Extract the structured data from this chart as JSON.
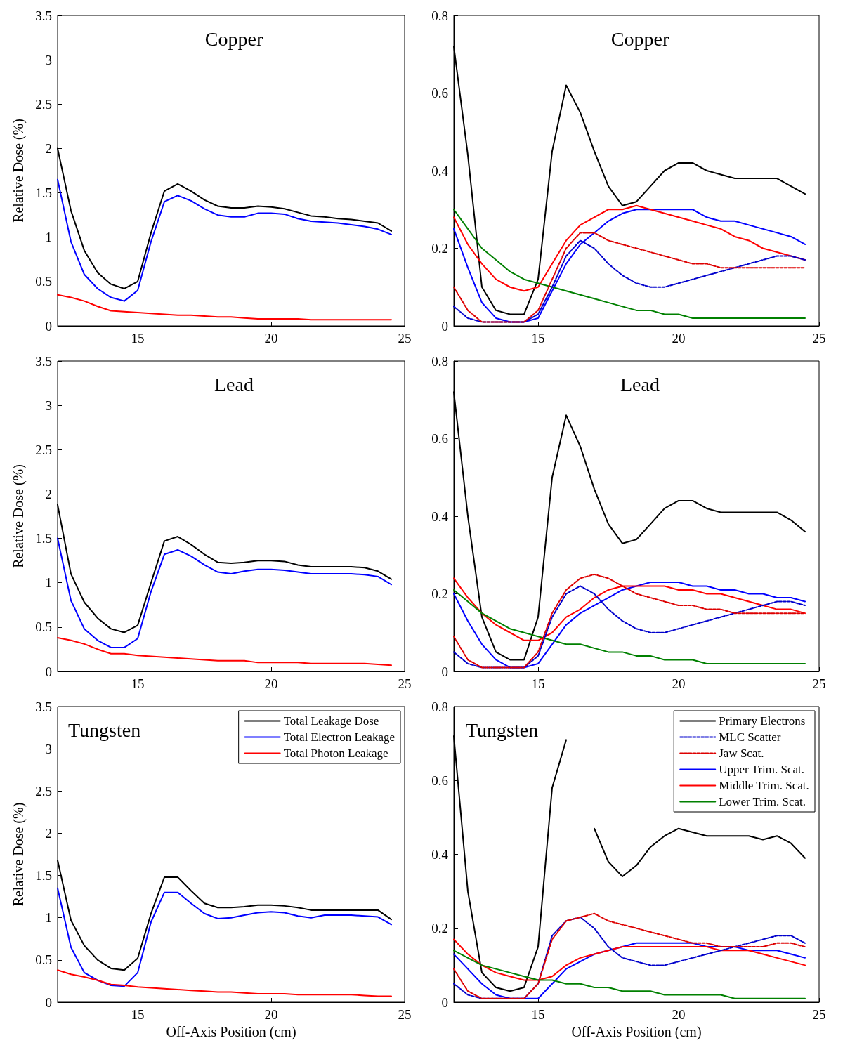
{
  "chart_data": [
    {
      "type": "line",
      "title": "Copper",
      "ylabel": "Relative Dose (%)",
      "xlim": [
        12,
        25
      ],
      "xticks": [
        15,
        20,
        25
      ],
      "ylim": [
        0,
        3.5
      ],
      "yticks": [
        0,
        0.5,
        1,
        1.5,
        2,
        2.5,
        3,
        3.5
      ],
      "x": [
        12,
        12.5,
        13,
        13.5,
        14,
        14.5,
        15,
        15.5,
        16,
        16.5,
        17,
        17.5,
        18,
        18.5,
        19,
        19.5,
        20,
        20.5,
        21,
        21.5,
        22,
        22.5,
        23,
        23.5,
        24,
        24.5
      ],
      "series": [
        {
          "color": "#000000",
          "values": [
            2.0,
            1.3,
            0.85,
            0.6,
            0.47,
            0.42,
            0.5,
            1.05,
            1.52,
            1.6,
            1.52,
            1.42,
            1.35,
            1.33,
            1.33,
            1.35,
            1.34,
            1.32,
            1.28,
            1.24,
            1.23,
            1.21,
            1.2,
            1.18,
            1.16,
            1.07
          ]
        },
        {
          "color": "#0000ff",
          "values": [
            1.65,
            0.95,
            0.58,
            0.42,
            0.32,
            0.28,
            0.4,
            0.95,
            1.4,
            1.47,
            1.41,
            1.32,
            1.25,
            1.23,
            1.23,
            1.27,
            1.27,
            1.26,
            1.21,
            1.18,
            1.17,
            1.16,
            1.14,
            1.12,
            1.09,
            1.03
          ]
        },
        {
          "color": "#ff0000",
          "values": [
            0.35,
            0.32,
            0.28,
            0.22,
            0.17,
            0.16,
            0.15,
            0.14,
            0.13,
            0.12,
            0.12,
            0.11,
            0.1,
            0.1,
            0.09,
            0.08,
            0.08,
            0.08,
            0.08,
            0.07,
            0.07,
            0.07,
            0.07,
            0.07,
            0.07,
            0.07
          ]
        }
      ]
    },
    {
      "type": "line",
      "title": "Copper",
      "xlim": [
        12,
        25
      ],
      "xticks": [
        15,
        20,
        25
      ],
      "ylim": [
        0,
        0.8
      ],
      "yticks": [
        0,
        0.2,
        0.4,
        0.6,
        0.8
      ],
      "x": [
        12,
        12.5,
        13,
        13.5,
        14,
        14.5,
        15,
        15.5,
        16,
        16.5,
        17,
        17.5,
        18,
        18.5,
        19,
        19.5,
        20,
        20.5,
        21,
        21.5,
        22,
        22.5,
        23,
        23.5,
        24,
        24.5
      ],
      "series": [
        {
          "color": "#000000",
          "values": [
            0.72,
            0.44,
            0.1,
            0.04,
            0.03,
            0.03,
            0.12,
            0.45,
            0.62,
            0.55,
            0.45,
            0.36,
            0.31,
            0.32,
            0.36,
            0.4,
            0.42,
            0.42,
            0.4,
            0.39,
            0.38,
            0.38,
            0.38,
            0.38,
            0.36,
            0.34
          ]
        },
        {
          "color": "#0000cc",
          "line_style": "dashed",
          "values": [
            0.05,
            0.02,
            0.01,
            0.01,
            0.01,
            0.01,
            0.03,
            0.1,
            0.18,
            0.22,
            0.2,
            0.16,
            0.13,
            0.11,
            0.1,
            0.1,
            0.11,
            0.12,
            0.13,
            0.14,
            0.15,
            0.16,
            0.17,
            0.18,
            0.18,
            0.17
          ]
        },
        {
          "color": "#dd0000",
          "line_style": "dashed",
          "values": [
            0.1,
            0.04,
            0.01,
            0.01,
            0.01,
            0.01,
            0.04,
            0.12,
            0.2,
            0.24,
            0.24,
            0.22,
            0.21,
            0.2,
            0.19,
            0.18,
            0.17,
            0.16,
            0.16,
            0.15,
            0.15,
            0.15,
            0.15,
            0.15,
            0.15,
            0.15
          ]
        },
        {
          "color": "#0000ff",
          "values": [
            0.25,
            0.15,
            0.06,
            0.02,
            0.01,
            0.01,
            0.02,
            0.09,
            0.16,
            0.21,
            0.24,
            0.27,
            0.29,
            0.3,
            0.3,
            0.3,
            0.3,
            0.3,
            0.28,
            0.27,
            0.27,
            0.26,
            0.25,
            0.24,
            0.23,
            0.21
          ]
        },
        {
          "color": "#ff0000",
          "values": [
            0.28,
            0.21,
            0.16,
            0.12,
            0.1,
            0.09,
            0.1,
            0.16,
            0.22,
            0.26,
            0.28,
            0.3,
            0.3,
            0.31,
            0.3,
            0.29,
            0.28,
            0.27,
            0.26,
            0.25,
            0.23,
            0.22,
            0.2,
            0.19,
            0.18,
            0.17
          ]
        },
        {
          "color": "#008000",
          "values": [
            0.3,
            0.25,
            0.2,
            0.17,
            0.14,
            0.12,
            0.11,
            0.1,
            0.09,
            0.08,
            0.07,
            0.06,
            0.05,
            0.04,
            0.04,
            0.03,
            0.03,
            0.02,
            0.02,
            0.02,
            0.02,
            0.02,
            0.02,
            0.02,
            0.02,
            0.02
          ]
        }
      ]
    },
    {
      "type": "line",
      "title": "Lead",
      "ylabel": "Relative Dose (%)",
      "xlim": [
        12,
        25
      ],
      "xticks": [
        15,
        20,
        25
      ],
      "ylim": [
        0,
        3.5
      ],
      "yticks": [
        0,
        0.5,
        1,
        1.5,
        2,
        2.5,
        3,
        3.5
      ],
      "x": [
        12,
        12.5,
        13,
        13.5,
        14,
        14.5,
        15,
        15.5,
        16,
        16.5,
        17,
        17.5,
        18,
        18.5,
        19,
        19.5,
        20,
        20.5,
        21,
        21.5,
        22,
        22.5,
        23,
        23.5,
        24,
        24.5
      ],
      "series": [
        {
          "color": "#000000",
          "values": [
            1.88,
            1.1,
            0.78,
            0.6,
            0.48,
            0.44,
            0.52,
            1.0,
            1.47,
            1.52,
            1.43,
            1.32,
            1.23,
            1.22,
            1.23,
            1.25,
            1.25,
            1.24,
            1.2,
            1.18,
            1.18,
            1.18,
            1.18,
            1.17,
            1.13,
            1.04
          ]
        },
        {
          "color": "#0000ff",
          "values": [
            1.5,
            0.8,
            0.48,
            0.35,
            0.27,
            0.27,
            0.37,
            0.9,
            1.32,
            1.37,
            1.3,
            1.2,
            1.12,
            1.1,
            1.13,
            1.15,
            1.15,
            1.14,
            1.12,
            1.1,
            1.1,
            1.1,
            1.1,
            1.09,
            1.07,
            0.98
          ]
        },
        {
          "color": "#ff0000",
          "values": [
            0.38,
            0.35,
            0.31,
            0.25,
            0.2,
            0.2,
            0.18,
            0.17,
            0.16,
            0.15,
            0.14,
            0.13,
            0.12,
            0.12,
            0.12,
            0.1,
            0.1,
            0.1,
            0.1,
            0.09,
            0.09,
            0.09,
            0.09,
            0.09,
            0.08,
            0.07
          ]
        }
      ]
    },
    {
      "type": "line",
      "title": "Lead",
      "xlim": [
        12,
        25
      ],
      "xticks": [
        15,
        20,
        25
      ],
      "ylim": [
        0,
        0.8
      ],
      "yticks": [
        0,
        0.2,
        0.4,
        0.6,
        0.8
      ],
      "x": [
        12,
        12.5,
        13,
        13.5,
        14,
        14.5,
        15,
        15.5,
        16,
        16.5,
        17,
        17.5,
        18,
        18.5,
        19,
        19.5,
        20,
        20.5,
        21,
        21.5,
        22,
        22.5,
        23,
        23.5,
        24,
        24.5
      ],
      "series": [
        {
          "color": "#000000",
          "values": [
            0.72,
            0.4,
            0.14,
            0.05,
            0.03,
            0.03,
            0.14,
            0.5,
            0.66,
            0.58,
            0.47,
            0.38,
            0.33,
            0.34,
            0.38,
            0.42,
            0.44,
            0.44,
            0.42,
            0.41,
            0.41,
            0.41,
            0.41,
            0.41,
            0.39,
            0.36
          ]
        },
        {
          "color": "#0000cc",
          "line_style": "dashed",
          "values": [
            0.05,
            0.02,
            0.01,
            0.01,
            0.01,
            0.01,
            0.04,
            0.14,
            0.2,
            0.22,
            0.2,
            0.16,
            0.13,
            0.11,
            0.1,
            0.1,
            0.11,
            0.12,
            0.13,
            0.14,
            0.15,
            0.16,
            0.17,
            0.18,
            0.18,
            0.17
          ]
        },
        {
          "color": "#dd0000",
          "line_style": "dashed",
          "values": [
            0.09,
            0.03,
            0.01,
            0.01,
            0.01,
            0.01,
            0.05,
            0.15,
            0.21,
            0.24,
            0.25,
            0.24,
            0.22,
            0.2,
            0.19,
            0.18,
            0.17,
            0.17,
            0.16,
            0.16,
            0.15,
            0.15,
            0.15,
            0.15,
            0.15,
            0.15
          ]
        },
        {
          "color": "#0000ff",
          "values": [
            0.2,
            0.13,
            0.07,
            0.03,
            0.01,
            0.01,
            0.02,
            0.07,
            0.12,
            0.15,
            0.17,
            0.19,
            0.21,
            0.22,
            0.23,
            0.23,
            0.23,
            0.22,
            0.22,
            0.21,
            0.21,
            0.2,
            0.2,
            0.19,
            0.19,
            0.18
          ]
        },
        {
          "color": "#ff0000",
          "values": [
            0.24,
            0.19,
            0.15,
            0.12,
            0.1,
            0.08,
            0.08,
            0.1,
            0.14,
            0.16,
            0.19,
            0.21,
            0.22,
            0.22,
            0.22,
            0.22,
            0.21,
            0.21,
            0.2,
            0.2,
            0.19,
            0.18,
            0.17,
            0.16,
            0.16,
            0.15
          ]
        },
        {
          "color": "#008000",
          "values": [
            0.21,
            0.18,
            0.15,
            0.13,
            0.11,
            0.1,
            0.09,
            0.08,
            0.07,
            0.07,
            0.06,
            0.05,
            0.05,
            0.04,
            0.04,
            0.03,
            0.03,
            0.03,
            0.02,
            0.02,
            0.02,
            0.02,
            0.02,
            0.02,
            0.02,
            0.02
          ]
        }
      ]
    },
    {
      "type": "line",
      "title": "Tungsten",
      "ylabel": "Relative Dose (%)",
      "xlabel": "Off-Axis Position (cm)",
      "legend": "top right",
      "xlim": [
        12,
        25
      ],
      "xticks": [
        15,
        20,
        25
      ],
      "ylim": [
        0,
        3.5
      ],
      "yticks": [
        0,
        0.5,
        1,
        1.5,
        2,
        2.5,
        3,
        3.5
      ],
      "x": [
        12,
        12.5,
        13,
        13.5,
        14,
        14.5,
        15,
        15.5,
        16,
        16.5,
        17,
        17.5,
        18,
        18.5,
        19,
        19.5,
        20,
        20.5,
        21,
        21.5,
        22,
        22.5,
        23,
        23.5,
        24,
        24.5
      ],
      "series": [
        {
          "name": "Total Leakage Dose",
          "color": "#000000",
          "values": [
            1.68,
            0.97,
            0.67,
            0.5,
            0.4,
            0.38,
            0.52,
            1.05,
            1.48,
            1.48,
            1.32,
            1.17,
            1.12,
            1.12,
            1.13,
            1.15,
            1.15,
            1.14,
            1.12,
            1.09,
            1.09,
            1.09,
            1.09,
            1.09,
            1.09,
            0.98
          ]
        },
        {
          "name": "Total Electron Leakage",
          "color": "#0000ff",
          "values": [
            1.35,
            0.65,
            0.35,
            0.26,
            0.2,
            0.19,
            0.35,
            0.95,
            1.3,
            1.3,
            1.17,
            1.05,
            0.99,
            1.0,
            1.03,
            1.06,
            1.07,
            1.06,
            1.02,
            1.0,
            1.03,
            1.03,
            1.03,
            1.02,
            1.01,
            0.92
          ]
        },
        {
          "name": "Total Photon Leakage",
          "color": "#ff0000",
          "values": [
            0.38,
            0.33,
            0.3,
            0.26,
            0.21,
            0.2,
            0.18,
            0.17,
            0.16,
            0.15,
            0.14,
            0.13,
            0.12,
            0.12,
            0.11,
            0.1,
            0.1,
            0.1,
            0.09,
            0.09,
            0.09,
            0.09,
            0.09,
            0.08,
            0.07,
            0.07
          ]
        }
      ]
    },
    {
      "type": "line",
      "title": "Tungsten",
      "xlabel": "Off-Axis Position (cm)",
      "legend": "top right",
      "xlim": [
        12,
        25
      ],
      "xticks": [
        15,
        20,
        25
      ],
      "ylim": [
        0,
        0.8
      ],
      "yticks": [
        0,
        0.2,
        0.4,
        0.6,
        0.8
      ],
      "x": [
        12,
        12.5,
        13,
        13.5,
        14,
        14.5,
        15,
        15.5,
        16,
        16.5,
        17,
        17.5,
        18,
        18.5,
        19,
        19.5,
        20,
        20.5,
        21,
        21.5,
        22,
        22.5,
        23,
        23.5,
        24,
        24.5
      ],
      "series": [
        {
          "name": "Primary Electrons",
          "color": "#000000",
          "values": [
            0.72,
            0.3,
            0.08,
            0.04,
            0.03,
            0.04,
            0.15,
            0.58,
            0.71,
            null,
            0.47,
            0.38,
            0.34,
            0.37,
            0.42,
            0.45,
            0.47,
            0.46,
            0.45,
            0.45,
            0.45,
            0.45,
            0.44,
            0.45,
            0.43,
            0.39
          ]
        },
        {
          "name": "MLC Scatter",
          "color": "#0000cc",
          "line_style": "dashed",
          "values": [
            0.05,
            0.02,
            0.01,
            0.01,
            0.01,
            0.01,
            0.05,
            0.18,
            0.22,
            0.23,
            0.2,
            0.15,
            0.12,
            0.11,
            0.1,
            0.1,
            0.11,
            0.12,
            0.13,
            0.14,
            0.15,
            0.16,
            0.17,
            0.18,
            0.18,
            0.16
          ]
        },
        {
          "name": "Jaw Scat.",
          "color": "#dd0000",
          "line_style": "dashed",
          "values": [
            0.09,
            0.03,
            0.01,
            0.01,
            0.01,
            0.01,
            0.05,
            0.17,
            0.22,
            0.23,
            0.24,
            0.22,
            0.21,
            0.2,
            0.19,
            0.18,
            0.17,
            0.16,
            0.16,
            0.15,
            0.15,
            0.15,
            0.15,
            0.16,
            0.16,
            0.15
          ]
        },
        {
          "name": "Upper Trim. Scat.",
          "color": "#0000ff",
          "values": [
            0.13,
            0.09,
            0.05,
            0.02,
            0.01,
            0.01,
            0.01,
            0.05,
            0.09,
            0.11,
            0.13,
            0.14,
            0.15,
            0.16,
            0.16,
            0.16,
            0.16,
            0.16,
            0.15,
            0.15,
            0.15,
            0.14,
            0.14,
            0.14,
            0.13,
            0.12
          ]
        },
        {
          "name": "Middle Trim. Scat.",
          "color": "#ff0000",
          "values": [
            0.17,
            0.13,
            0.1,
            0.08,
            0.07,
            0.06,
            0.06,
            0.07,
            0.1,
            0.12,
            0.13,
            0.14,
            0.15,
            0.15,
            0.15,
            0.15,
            0.15,
            0.15,
            0.15,
            0.14,
            0.14,
            0.14,
            0.13,
            0.12,
            0.11,
            0.1
          ]
        },
        {
          "name": "Lower Trim. Scat.",
          "color": "#008000",
          "values": [
            0.14,
            0.12,
            0.1,
            0.09,
            0.08,
            0.07,
            0.06,
            0.06,
            0.05,
            0.05,
            0.04,
            0.04,
            0.03,
            0.03,
            0.03,
            0.02,
            0.02,
            0.02,
            0.02,
            0.02,
            0.01,
            0.01,
            0.01,
            0.01,
            0.01,
            0.01
          ]
        }
      ]
    }
  ]
}
